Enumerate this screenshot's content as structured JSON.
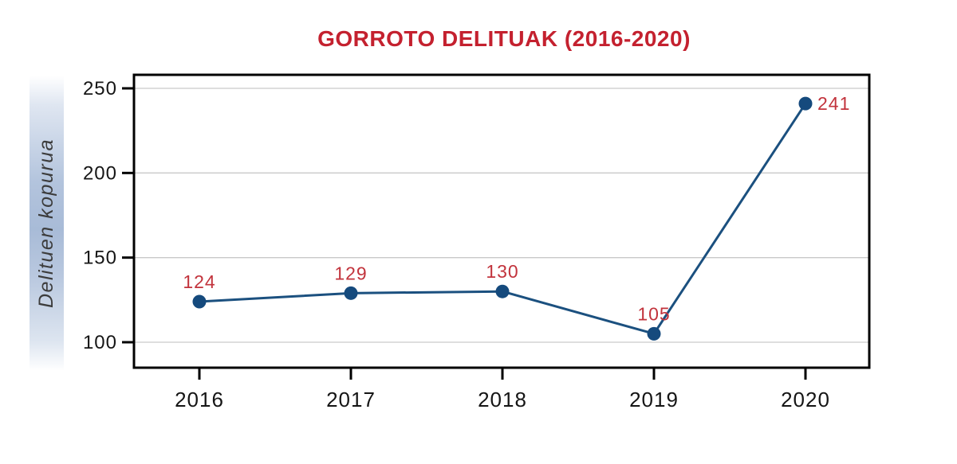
{
  "chart_data": {
    "type": "line",
    "title": "GORROTO DELITUAK (2016-2020)",
    "ylabel": "Delituen kopurua",
    "xlabel": "",
    "categories": [
      "2016",
      "2017",
      "2018",
      "2019",
      "2020"
    ],
    "values": [
      124,
      129,
      130,
      105,
      241
    ],
    "data_label_placement": [
      "above",
      "above",
      "above",
      "above",
      "right"
    ],
    "yticks": [
      100,
      150,
      200,
      250
    ],
    "ylim": [
      85,
      258
    ],
    "grid": true,
    "legend": "none",
    "colors": {
      "title": "#c4212f",
      "data_label": "#c2333c",
      "line": "#1b507f",
      "point": "#154a7d",
      "tick_label": "#151515",
      "plot_border": "#000000",
      "grid_line": "#c9c9c9",
      "ylabel_band_mid": "#a8bbd7",
      "ylabel_text": "#3c3c3c",
      "background": "#ffffff"
    }
  }
}
